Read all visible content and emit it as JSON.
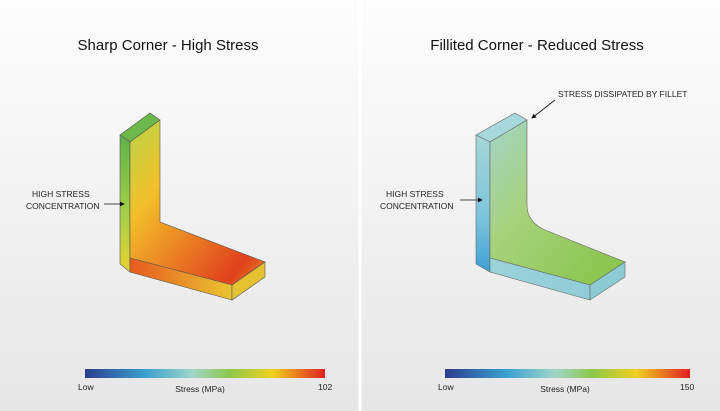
{
  "panels": [
    {
      "title": "Sharp Corner - High Stress",
      "annotations": [
        {
          "lines": [
            "HIGH STRESS",
            "CONCENTRATION"
          ]
        }
      ],
      "colorbar": {
        "min_label": "Low",
        "label": "Stress (MPa)",
        "max_label": "102"
      }
    },
    {
      "title": "Fillited Corner - Reduced Stress",
      "annotations": [
        {
          "lines": [
            "HIGH STRESS",
            "CONCENTRATION"
          ]
        },
        {
          "lines": [
            "STRESS DISSIPATED BY FILLET"
          ]
        }
      ],
      "colorbar": {
        "min_label": "Low",
        "label": "Stress (MPa)",
        "max_label": "150"
      }
    }
  ]
}
